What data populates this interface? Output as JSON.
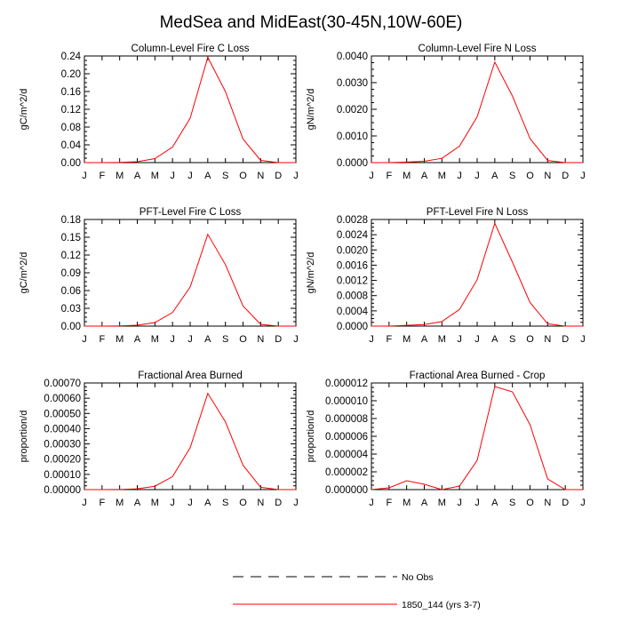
{
  "figure": {
    "title": "MedSea and MidEast(30-45N,10W-60E)"
  },
  "legend": [
    {
      "label": "No Obs",
      "style": "dashed",
      "color": "#000000"
    },
    {
      "label": "1850_144 (yrs 3-7)",
      "style": "solid",
      "color": "#ff0000"
    }
  ],
  "chart_data": [
    {
      "type": "line",
      "title": "Column-Level Fire C Loss",
      "ylabel": "gC/m^2/d",
      "categories": [
        "J",
        "F",
        "M",
        "A",
        "M",
        "J",
        "J",
        "A",
        "S",
        "O",
        "N",
        "D",
        "J"
      ],
      "ylim": [
        0,
        0.24
      ],
      "yticks": [
        "0.00",
        "0.04",
        "0.08",
        "0.12",
        "0.16",
        "0.20",
        "0.24"
      ],
      "series": [
        {
          "name": "1850_144 (yrs 3-7)",
          "color": "#ff0000",
          "values": [
            0.0,
            0.0,
            0.0005,
            0.002,
            0.009,
            0.035,
            0.1,
            0.237,
            0.16,
            0.053,
            0.005,
            0.0,
            0.0
          ]
        }
      ]
    },
    {
      "type": "line",
      "title": "Column-Level Fire N Loss",
      "ylabel": "gN/m^2/d",
      "categories": [
        "J",
        "F",
        "M",
        "A",
        "M",
        "J",
        "J",
        "A",
        "S",
        "O",
        "N",
        "D",
        "J"
      ],
      "ylim": [
        0,
        0.004
      ],
      "yticks": [
        "0.0000",
        "0.0010",
        "0.0020",
        "0.0030",
        "0.0040"
      ],
      "series": [
        {
          "name": "1850_144 (yrs 3-7)",
          "color": "#ff0000",
          "values": [
            0.0,
            0.0,
            2e-05,
            5e-05,
            0.00016,
            0.00062,
            0.00172,
            0.00377,
            0.0025,
            0.0009,
            8e-05,
            0.0,
            0.0
          ]
        }
      ]
    },
    {
      "type": "line",
      "title": "PFT-Level Fire C Loss",
      "ylabel": "gC/m^2/d",
      "categories": [
        "J",
        "F",
        "M",
        "A",
        "M",
        "J",
        "J",
        "A",
        "S",
        "O",
        "N",
        "D",
        "J"
      ],
      "ylim": [
        0,
        0.18
      ],
      "yticks": [
        "0.00",
        "0.03",
        "0.06",
        "0.09",
        "0.12",
        "0.15",
        "0.18"
      ],
      "series": [
        {
          "name": "1850_144 (yrs 3-7)",
          "color": "#ff0000",
          "values": [
            0.0,
            0.0,
            0.0003,
            0.0015,
            0.006,
            0.023,
            0.066,
            0.155,
            0.104,
            0.034,
            0.003,
            0.0,
            0.0
          ]
        }
      ]
    },
    {
      "type": "line",
      "title": "PFT-Level Fire N Loss",
      "ylabel": "gN/m^2/d",
      "categories": [
        "J",
        "F",
        "M",
        "A",
        "M",
        "J",
        "J",
        "A",
        "S",
        "O",
        "N",
        "D",
        "J"
      ],
      "ylim": [
        0,
        0.0028
      ],
      "yticks": [
        "0.0000",
        "0.0004",
        "0.0008",
        "0.0012",
        "0.0016",
        "0.0020",
        "0.0024",
        "0.0028"
      ],
      "series": [
        {
          "name": "1850_144 (yrs 3-7)",
          "color": "#ff0000",
          "values": [
            0.0,
            0.0,
            2e-05,
            4e-05,
            0.00012,
            0.00044,
            0.00122,
            0.0027,
            0.00168,
            0.00062,
            6e-05,
            0.0,
            0.0
          ]
        }
      ]
    },
    {
      "type": "line",
      "title": "Fractional Area Burned",
      "ylabel": "proportion/d",
      "categories": [
        "J",
        "F",
        "M",
        "A",
        "M",
        "J",
        "J",
        "A",
        "S",
        "O",
        "N",
        "D",
        "J"
      ],
      "ylim": [
        0,
        0.0007
      ],
      "yticks": [
        "0.00000",
        "0.00010",
        "0.00020",
        "0.00030",
        "0.00040",
        "0.00050",
        "0.00060",
        "0.00070"
      ],
      "series": [
        {
          "name": "1850_144 (yrs 3-7)",
          "color": "#ff0000",
          "values": [
            0.0,
            0.0,
            1e-06,
            5e-06,
            2.2e-05,
            8.5e-05,
            0.000275,
            0.000632,
            0.000445,
            0.00016,
            1.5e-05,
            0.0,
            0.0
          ]
        }
      ]
    },
    {
      "type": "line",
      "title": "Fractional Area Burned - Crop",
      "ylabel": "proportion/d",
      "categories": [
        "J",
        "F",
        "M",
        "A",
        "M",
        "J",
        "J",
        "A",
        "S",
        "O",
        "N",
        "D",
        "J"
      ],
      "ylim": [
        0,
        1.2e-05
      ],
      "yticks": [
        "0.000000",
        "0.000002",
        "0.000004",
        "0.000006",
        "0.000008",
        "0.000010",
        "0.000012"
      ],
      "series": [
        {
          "name": "1850_144 (yrs 3-7)",
          "color": "#ff0000",
          "values": [
            0.0,
            2e-07,
            1e-06,
            6e-07,
            0.0,
            4e-07,
            3.3e-06,
            1.16e-05,
            1.1e-05,
            7.3e-06,
            1.2e-06,
            0.0,
            0.0
          ]
        }
      ]
    }
  ]
}
